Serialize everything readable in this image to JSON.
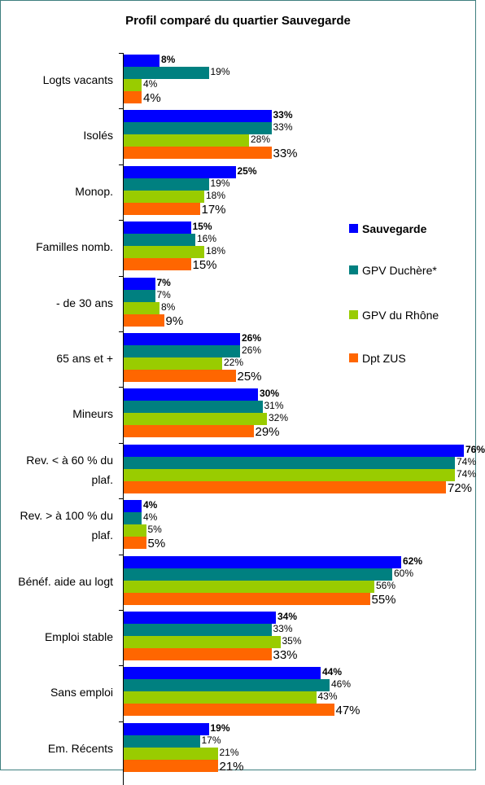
{
  "chart_data": {
    "type": "bar",
    "orientation": "horizontal",
    "title": "Profil comparé du quartier Sauvegarde",
    "categories": [
      "Logts vacants",
      "Isolés",
      "Monop.",
      "Familles nomb.",
      "- de 30 ans",
      "65 ans et +",
      "Mineurs",
      "Rev. < à 60 % du plaf.",
      "Rev. > à 100 % du plaf.",
      "Bénéf. aide au logt",
      "Emploi stable",
      "Sans emploi",
      "Em. Récents"
    ],
    "series": [
      {
        "name": "Sauvegarde",
        "color": "#0000ff",
        "values": [
          8,
          33,
          25,
          15,
          7,
          26,
          30,
          76,
          4,
          62,
          34,
          44,
          19
        ],
        "value_labels": [
          "8%",
          "33%",
          "25%",
          "15%",
          "7%",
          "26%",
          "30%",
          "76%",
          "4%",
          "62%",
          "34%",
          "44%",
          "19%"
        ]
      },
      {
        "name": "GPV Duchère*",
        "color": "#008080",
        "values": [
          19,
          33,
          19,
          16,
          7,
          26,
          31,
          74,
          4,
          60,
          33,
          46,
          17
        ],
        "value_labels": [
          "19%",
          "33%",
          "19%",
          "16%",
          "7%",
          "26%",
          "31%",
          "74%",
          "4%",
          "60%",
          "33%",
          "46%",
          "17%"
        ]
      },
      {
        "name": "GPV du Rhône",
        "color": "#99cc00",
        "values": [
          4,
          28,
          18,
          18,
          8,
          22,
          32,
          74,
          5,
          56,
          35,
          43,
          21
        ],
        "value_labels": [
          "4%",
          "28%",
          "18%",
          "18%",
          "8%",
          "22%",
          "32%",
          "74%",
          "5%",
          "56%",
          "35%",
          "43%",
          "21%"
        ]
      },
      {
        "name": "Dpt ZUS",
        "color": "#ff6600",
        "values": [
          4,
          33,
          17,
          15,
          9,
          25,
          29,
          72,
          5,
          55,
          33,
          47,
          21
        ],
        "value_labels": [
          "4%",
          "33%",
          "17%",
          "15%",
          "9%",
          "25%",
          "29%",
          "72%",
          "5%",
          "55%",
          "33%",
          "47%",
          "21%"
        ]
      }
    ],
    "legend": "right"
  }
}
